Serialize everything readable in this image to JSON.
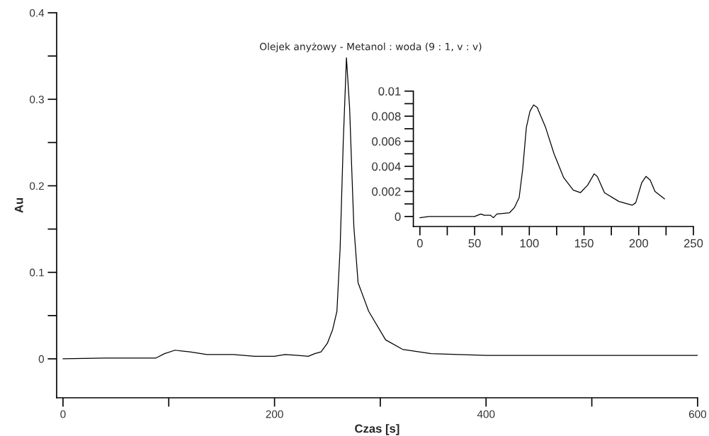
{
  "chart_data": [
    {
      "type": "line",
      "title": "Olejek anyżowy - Metanol : woda (9 : 1, v : v)",
      "xlabel": "Czas [s]",
      "ylabel": "Au",
      "x": [
        0,
        40,
        88,
        96,
        106,
        120,
        136,
        161,
        181,
        200,
        210,
        222,
        232,
        238,
        244,
        250,
        255,
        259,
        262,
        265,
        268,
        271,
        273,
        275,
        279,
        289,
        305,
        321,
        348,
        400,
        500,
        600
      ],
      "values": [
        0,
        0.001,
        0.001,
        0.006,
        0.01,
        0.008,
        0.005,
        0.005,
        0.003,
        0.003,
        0.005,
        0.004,
        0.003,
        0.006,
        0.008,
        0.018,
        0.034,
        0.055,
        0.127,
        0.251,
        0.348,
        0.29,
        0.22,
        0.153,
        0.088,
        0.055,
        0.022,
        0.011,
        0.006,
        0.004,
        0.004,
        0.004
      ],
      "color": "#000000",
      "xlim": [
        -6,
        600
      ],
      "xticks": [
        0,
        {
          "value": 100,
          "label": null
        },
        200,
        {
          "value": 300,
          "label": null
        },
        400,
        {
          "value": 500,
          "label": null
        },
        600
      ],
      "ylim": [
        -0.045,
        0.4
      ],
      "yticks": [
        0,
        {
          "value": 0.05,
          "label": null
        },
        0.1,
        {
          "value": 0.15,
          "label": null
        },
        0.2,
        {
          "value": 0.25,
          "label": null
        },
        0.3,
        {
          "value": 0.35,
          "label": null
        },
        0.4
      ]
    },
    {
      "type": "line",
      "x": [
        0,
        8.3,
        34.7,
        50,
        55.6,
        58.9,
        64.4,
        67.2,
        70.3,
        82,
        86.3,
        90.7,
        94,
        97.3,
        100.6,
        103.9,
        107.2,
        114.9,
        122.6,
        131.4,
        140.2,
        146.7,
        153.3,
        159.3,
        162.1,
        168.7,
        181.9,
        194,
        197.3,
        202.8,
        206.7,
        210.5,
        214.9,
        223.6
      ],
      "values": [
        -0.0001,
        0,
        0,
        0,
        0.0002,
        0.0001,
        0.0001,
        -0.0001,
        0.0002,
        0.0003,
        0.0007,
        0.0015,
        0.0038,
        0.0071,
        0.0084,
        0.0089,
        0.0087,
        0.0071,
        0.005,
        0.0031,
        0.0021,
        0.0019,
        0.0025,
        0.0034,
        0.0032,
        0.0019,
        0.0012,
        0.0009,
        0.0011,
        0.0027,
        0.0032,
        0.0029,
        0.002,
        0.0014
      ],
      "color": "#000000",
      "xlim": [
        -6,
        250
      ],
      "xticks": [
        0,
        {
          "value": 25,
          "label": null
        },
        50,
        {
          "value": 75,
          "label": null
        },
        100,
        {
          "value": 125,
          "label": null
        },
        150,
        {
          "value": 175,
          "label": null
        },
        200,
        {
          "value": 225,
          "label": null
        },
        250
      ],
      "ylim": [
        -0.0008,
        0.01
      ],
      "yticks": [
        0,
        {
          "value": 0.001,
          "label": null
        },
        0.002,
        {
          "value": 0.003,
          "label": null
        },
        0.004,
        {
          "value": 0.005,
          "label": null
        },
        0.006,
        {
          "value": 0.007,
          "label": null
        },
        0.008,
        {
          "value": 0.009,
          "label": null
        },
        0.01
      ]
    }
  ]
}
